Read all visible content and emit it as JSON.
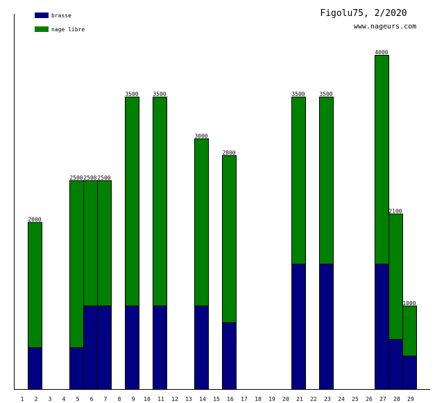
{
  "chart_data": {
    "type": "bar",
    "stacked": true,
    "title": "Figolu75, 2/2020",
    "subtitle": "www.nageurs.com",
    "xlabel": "",
    "ylabel": "",
    "ylim": [
      0,
      4000
    ],
    "grid": false,
    "legend_position": "top-left",
    "categories": [
      "1",
      "2",
      "3",
      "4",
      "5",
      "6",
      "7",
      "8",
      "9",
      "10",
      "11",
      "12",
      "13",
      "14",
      "15",
      "16",
      "17",
      "18",
      "19",
      "20",
      "21",
      "22",
      "23",
      "24",
      "25",
      "26",
      "27",
      "28",
      "29"
    ],
    "series": [
      {
        "name": "brasse",
        "color": "#000080",
        "values": [
          0,
          500,
          0,
          0,
          500,
          1000,
          1000,
          0,
          1000,
          0,
          1000,
          0,
          0,
          1000,
          0,
          800,
          0,
          0,
          0,
          0,
          1500,
          0,
          1500,
          0,
          0,
          0,
          1500,
          600,
          400
        ]
      },
      {
        "name": "nage libre",
        "color": "#008000",
        "values": [
          0,
          1500,
          0,
          0,
          2000,
          1500,
          1500,
          0,
          2500,
          0,
          2500,
          0,
          0,
          2000,
          0,
          2000,
          0,
          0,
          0,
          0,
          2000,
          0,
          2000,
          0,
          0,
          0,
          2500,
          1500,
          600
        ]
      }
    ],
    "totals": [
      0,
      2000,
      0,
      0,
      2500,
      2500,
      2500,
      0,
      3500,
      0,
      3500,
      0,
      0,
      3000,
      0,
      2800,
      0,
      0,
      0,
      0,
      3500,
      0,
      3500,
      0,
      0,
      0,
      4000,
      2100,
      1000
    ]
  }
}
